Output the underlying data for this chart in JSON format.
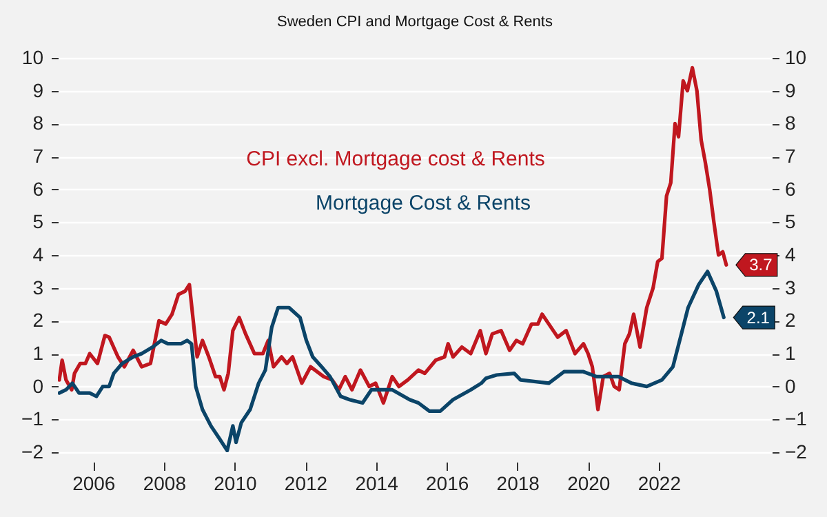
{
  "chart_data": {
    "type": "line",
    "title": "Sweden CPI and Mortgage Cost & Rents",
    "xlim": [
      2005,
      2025.2
    ],
    "xticks": [
      2006,
      2008,
      2010,
      2012,
      2014,
      2016,
      2018,
      2020,
      2022
    ],
    "ylim": [
      -2,
      10
    ],
    "yticks": [
      -2,
      -1,
      0,
      1,
      2,
      3,
      4,
      5,
      6,
      7,
      8,
      9,
      10
    ],
    "y2lim": [
      -2,
      10
    ],
    "y2ticks": [
      -2,
      -1,
      0,
      1,
      2,
      3,
      4,
      5,
      6,
      7,
      8,
      9,
      10
    ],
    "grid": "y",
    "legend": false,
    "series": [
      {
        "name": "CPI excl. Mortgage cost & Rents",
        "color": "#c0171f",
        "x": [
          2005.04,
          2005.12,
          2005.23,
          2005.39,
          2005.47,
          2005.63,
          2005.78,
          2005.9,
          2006.12,
          2006.33,
          2006.45,
          2006.7,
          2006.88,
          2007.13,
          2007.37,
          2007.62,
          2007.86,
          2008.05,
          2008.23,
          2008.41,
          2008.6,
          2008.72,
          2008.94,
          2009.09,
          2009.27,
          2009.46,
          2009.58,
          2009.7,
          2009.82,
          2009.95,
          2010.13,
          2010.31,
          2010.56,
          2010.8,
          2010.95,
          2011.1,
          2011.33,
          2011.48,
          2011.64,
          2011.9,
          2012.15,
          2012.52,
          2012.76,
          2012.95,
          2013.13,
          2013.32,
          2013.56,
          2013.81,
          2013.99,
          2014.21,
          2014.46,
          2014.65,
          2014.9,
          2015.2,
          2015.38,
          2015.69,
          2015.94,
          2016.04,
          2016.18,
          2016.43,
          2016.68,
          2016.95,
          2017.11,
          2017.29,
          2017.54,
          2017.66,
          2017.78,
          2017.97,
          2018.15,
          2018.4,
          2018.58,
          2018.7,
          2018.89,
          2019.14,
          2019.38,
          2019.63,
          2019.87,
          2020.0,
          2020.12,
          2020.28,
          2020.43,
          2020.61,
          2020.74,
          2020.88,
          2021.04,
          2021.17,
          2021.29,
          2021.47,
          2021.66,
          2021.84,
          2021.97,
          2022.09,
          2022.22,
          2022.34,
          2022.46,
          2022.56,
          2022.69,
          2022.81,
          2022.95,
          2023.08,
          2023.2,
          2023.32,
          2023.44,
          2023.56,
          2023.69,
          2023.81,
          2023.91
        ],
        "values": [
          0.2,
          0.8,
          0.2,
          -0.1,
          0.4,
          0.7,
          0.7,
          1.0,
          0.7,
          1.55,
          1.5,
          0.9,
          0.6,
          1.1,
          0.6,
          0.7,
          2.0,
          1.9,
          2.2,
          2.8,
          2.9,
          3.1,
          0.9,
          1.4,
          0.9,
          0.3,
          0.3,
          -0.1,
          0.4,
          1.7,
          2.1,
          1.6,
          1.0,
          1.0,
          1.4,
          0.6,
          0.9,
          0.7,
          0.9,
          0.1,
          0.6,
          0.3,
          0.2,
          -0.1,
          0.3,
          -0.1,
          0.5,
          0.0,
          0.1,
          -0.5,
          0.3,
          0.0,
          0.2,
          0.5,
          0.4,
          0.8,
          0.9,
          1.3,
          0.9,
          1.2,
          1.0,
          1.7,
          1.0,
          1.6,
          1.7,
          1.4,
          1.1,
          1.4,
          1.3,
          1.9,
          1.9,
          2.2,
          1.9,
          1.5,
          1.7,
          1.0,
          1.3,
          1.0,
          0.6,
          -0.7,
          0.3,
          0.4,
          0.0,
          -0.1,
          1.3,
          1.6,
          2.2,
          1.2,
          2.4,
          3.0,
          3.8,
          3.9,
          5.8,
          6.2,
          8.0,
          7.6,
          9.3,
          9.0,
          9.7,
          9.0,
          7.5,
          6.8,
          6.0,
          5.0,
          4.0,
          4.1,
          3.7
        ],
        "value_labels": [
          null,
          null,
          null,
          null,
          null,
          null,
          null,
          null,
          null,
          null,
          null,
          null,
          null,
          null,
          null,
          null,
          null,
          null,
          null,
          null,
          null,
          null,
          null,
          null,
          null,
          null,
          null,
          null,
          null,
          null,
          null,
          null,
          null,
          null,
          null,
          null,
          null,
          null,
          null,
          null,
          null,
          null,
          null,
          null,
          null,
          null,
          null,
          null,
          null,
          null,
          null,
          null,
          null,
          null,
          null,
          null,
          null,
          null,
          null,
          null,
          null,
          null,
          null,
          null,
          null,
          null,
          null,
          null,
          null,
          null,
          null,
          null,
          null,
          null,
          null,
          null,
          null,
          null,
          null,
          null,
          null,
          null,
          null,
          null,
          null,
          null,
          null,
          null,
          null,
          null,
          null,
          null,
          null,
          null,
          null,
          null,
          null,
          null,
          null,
          null,
          null,
          null,
          null,
          null,
          null,
          null,
          "3.7"
        ]
      },
      {
        "name": "Mortgage Cost & Rents",
        "color": "#0b4468",
        "x": [
          2005.04,
          2005.23,
          2005.41,
          2005.6,
          2005.9,
          2006.09,
          2006.27,
          2006.45,
          2006.58,
          2006.82,
          2007.13,
          2007.37,
          2007.68,
          2007.92,
          2008.11,
          2008.48,
          2008.66,
          2008.78,
          2008.9,
          2009.09,
          2009.33,
          2009.58,
          2009.79,
          2009.95,
          2010.04,
          2010.19,
          2010.44,
          2010.68,
          2010.87,
          2011.05,
          2011.23,
          2011.54,
          2011.85,
          2012.03,
          2012.21,
          2012.46,
          2012.7,
          2013.0,
          2013.25,
          2013.62,
          2013.87,
          2014.17,
          2014.46,
          2014.95,
          2015.2,
          2015.51,
          2015.82,
          2016.18,
          2016.68,
          2016.98,
          2017.11,
          2017.41,
          2017.91,
          2018.09,
          2018.89,
          2019.32,
          2019.87,
          2020.24,
          2020.86,
          2021.23,
          2021.66,
          2022.09,
          2022.4,
          2022.64,
          2022.83,
          2023.13,
          2023.38,
          2023.63,
          2023.84
        ],
        "values": [
          -0.2,
          -0.1,
          0.1,
          -0.2,
          -0.2,
          -0.3,
          0.0,
          0.0,
          0.4,
          0.7,
          0.9,
          1.0,
          1.2,
          1.4,
          1.3,
          1.3,
          1.4,
          1.3,
          0.0,
          -0.7,
          -1.2,
          -1.6,
          -1.95,
          -1.2,
          -1.7,
          -1.1,
          -0.7,
          0.1,
          0.5,
          1.8,
          2.4,
          2.4,
          2.1,
          1.4,
          0.9,
          0.6,
          0.3,
          -0.3,
          -0.4,
          -0.5,
          -0.1,
          -0.1,
          -0.1,
          -0.4,
          -0.5,
          -0.75,
          -0.75,
          -0.4,
          -0.1,
          0.1,
          0.25,
          0.35,
          0.4,
          0.2,
          0.1,
          0.45,
          0.45,
          0.3,
          0.3,
          0.1,
          0.0,
          0.2,
          0.6,
          1.6,
          2.4,
          3.1,
          3.5,
          2.9,
          2.1
        ],
        "value_labels": [
          null,
          null,
          null,
          null,
          null,
          null,
          null,
          null,
          null,
          null,
          null,
          null,
          null,
          null,
          null,
          null,
          null,
          null,
          null,
          null,
          null,
          null,
          null,
          null,
          null,
          null,
          null,
          null,
          null,
          null,
          null,
          null,
          null,
          null,
          null,
          null,
          null,
          null,
          null,
          null,
          null,
          null,
          null,
          null,
          null,
          null,
          null,
          null,
          null,
          null,
          null,
          null,
          null,
          null,
          null,
          null,
          null,
          null,
          null,
          null,
          null,
          null,
          null,
          null,
          null,
          null,
          null,
          null,
          "2.1"
        ]
      }
    ]
  }
}
